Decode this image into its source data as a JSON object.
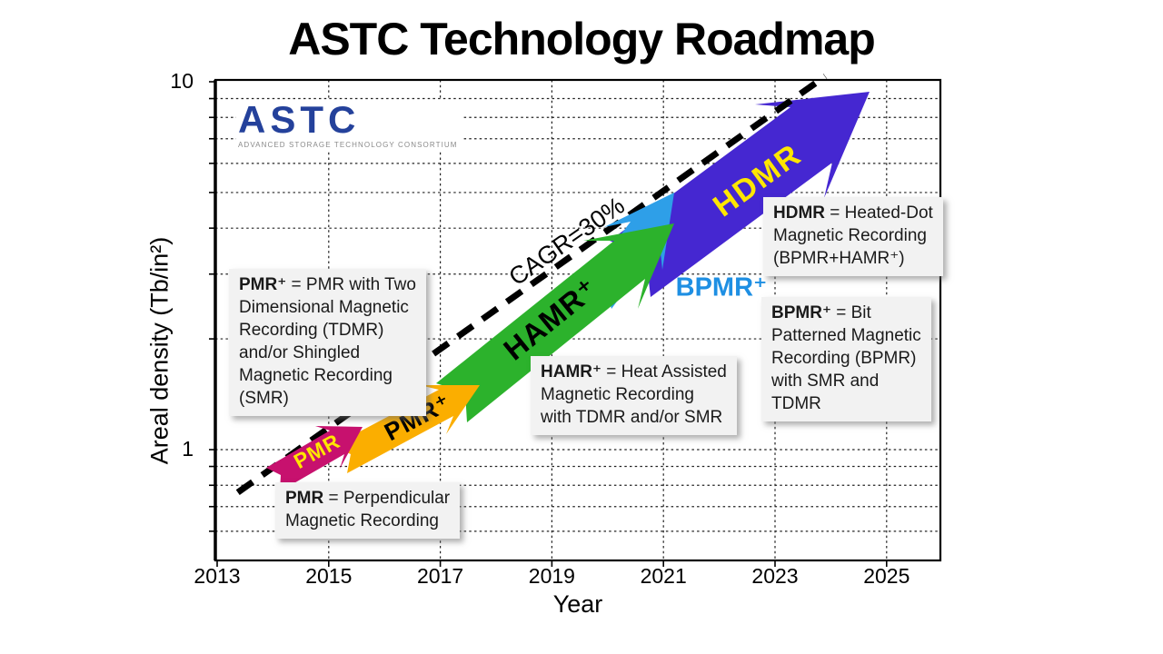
{
  "title": "ASTC Technology Roadmap",
  "logo": {
    "name": "ASTC",
    "subtitle": "ADVANCED STORAGE TECHNOLOGY CONSORTIUM"
  },
  "axes": {
    "x_label": "Year",
    "y_label": "Areal density (Tb/in²)",
    "x_ticks": [
      "2013",
      "2015",
      "2017",
      "2019",
      "2021",
      "2023",
      "2025"
    ],
    "y_ticks": [
      "10",
      "1"
    ]
  },
  "cagr": {
    "label": "CAGR=30%"
  },
  "arrow_labels": {
    "pmr": "PMR",
    "pmr_plus": "PMR⁺",
    "hamr_plus": "HAMR⁺",
    "bpmr_plus": "BPMR⁺",
    "hdmr": "HDMR"
  },
  "boxes": {
    "pmr_plus": {
      "term": "PMR⁺",
      "definition": " = PMR with Two\nDimensional Magnetic\nRecording (TDMR)\nand/or Shingled\nMagnetic Recording\n(SMR)"
    },
    "pmr": {
      "term": "PMR",
      "definition": " = Perpendicular\nMagnetic Recording"
    },
    "hamr_plus": {
      "term": "HAMR⁺",
      "definition": " = Heat Assisted\nMagnetic Recording\nwith TDMR and/or SMR"
    },
    "hdmr": {
      "term": "HDMR",
      "definition": " = Heated-Dot\nMagnetic Recording\n(BPMR+HAMR⁺)"
    },
    "bpmr_plus": {
      "term": "BPMR⁺",
      "definition": " = Bit\nPatterned Magnetic\nRecording (BPMR)\nwith SMR and\nTDMR"
    }
  },
  "colors": {
    "pmr": "#C7116E",
    "pmr_plus": "#FBAE00",
    "hamr_plus": "#2CB22C",
    "bpmr_plus": "#2E9FE8",
    "hdmr": "#4527D1",
    "bpmr_label": "#1E8FE3",
    "arrow_text_yellow": "#FFE600",
    "logo_blue": "#24419B",
    "note_background": "#F2F2F2",
    "grid": "#222222"
  },
  "chart_data": {
    "type": "line",
    "title": "ASTC Technology Roadmap",
    "xlabel": "Year",
    "ylabel": "Areal density (Tb/in²)",
    "x_axis": {
      "range": [
        2013,
        2026
      ],
      "gridlines": [
        2015,
        2017,
        2019,
        2021,
        2023,
        2025
      ]
    },
    "y_axis": {
      "scale": "log",
      "range": [
        0.5,
        10
      ],
      "labeled_ticks": [
        10,
        1
      ],
      "gridlines": [
        9,
        8,
        7,
        6,
        5,
        4,
        3,
        2,
        1,
        0.9,
        0.8,
        0.7,
        0.6
      ]
    },
    "cagr_line": {
      "name": "CAGR=30%",
      "x": [
        2013.37,
        2023.9
      ],
      "y": [
        0.765,
        10.35
      ],
      "color": "#000000",
      "dashed": true,
      "width": 7
    },
    "series": [
      {
        "name": "HDMR",
        "technology": "Heated-Dot Magnetic Recording (BPMR+HAMR⁺)",
        "x": [
          2020.4,
          2024.7
        ],
        "y": [
          3.1,
          9.4
        ],
        "color": "#4527D1",
        "label_color": "#FFE600",
        "behind_cagr_line": true,
        "shape": {
          "body": 38,
          "wing": 64,
          "head": 80,
          "barb": 30,
          "tailnotch": 22
        }
      },
      {
        "name": "BPMR⁺",
        "technology": "Bit Patterned Magnetic Recording (BPMR) with SMR and TDMR",
        "x": [
          2019.8,
          2021.2
        ],
        "y": [
          2.58,
          4.99
        ],
        "color": "#2E9FE8",
        "label_color": "#1E8FE3",
        "shape": {
          "body": 20,
          "wing": 40,
          "head": 54,
          "barb": 22,
          "tailnotch": 16
        }
      },
      {
        "name": "HAMR⁺",
        "technology": "Heat Assisted Magnetic Recording with TDMR and/or SMR",
        "x": [
          2017.2,
          2021.2
        ],
        "y": [
          1.34,
          4.12
        ],
        "color": "#2CB22C",
        "label_color": "#000000",
        "shape": {
          "body": 27,
          "wing": 48,
          "head": 64,
          "barb": 26,
          "tailnotch": 19
        }
      },
      {
        "name": "PMR⁺",
        "technology": "PMR with TDMR and/or SMR",
        "x": [
          2015.2,
          2017.7
        ],
        "y": [
          0.94,
          1.5
        ],
        "color": "#FBAE00",
        "label_color": "#000000",
        "shape": {
          "body": 17,
          "wing": 31,
          "head": 42,
          "barb": 16,
          "tailnotch": 13
        }
      },
      {
        "name": "PMR",
        "technology": "Perpendicular Magnetic Recording",
        "x": [
          2014.0,
          2015.6
        ],
        "y": [
          0.83,
          1.15
        ],
        "color": "#C7116E",
        "label_color": "#FFE600",
        "shape": {
          "body": 15,
          "wing": 27,
          "head": 32,
          "barb": 12,
          "tailnotch": 10
        }
      }
    ]
  }
}
